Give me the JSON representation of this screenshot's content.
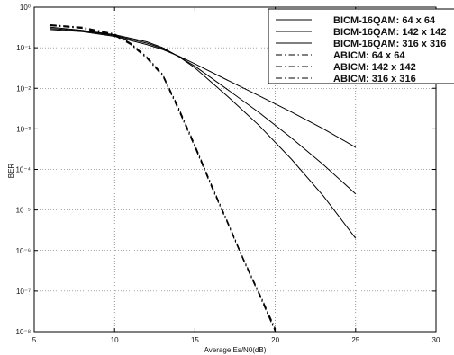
{
  "chart_data": {
    "type": "line",
    "xlabel": "Average Es/N0(dB)",
    "ylabel": "BER",
    "xlim": [
      5,
      30
    ],
    "ylim_log10": [
      -8,
      0
    ],
    "y_scale": "log",
    "grid": true,
    "legend_position": "top-right",
    "x_ticks": [
      "5",
      "10",
      "15",
      "20",
      "25",
      "30"
    ],
    "y_ticks": [
      "10⁰",
      "10⁻¹",
      "10⁻²",
      "10⁻³",
      "10⁻⁴",
      "10⁻⁵",
      "10⁻⁶",
      "10⁻⁷",
      "10⁻⁸"
    ],
    "series": [
      {
        "name": "BICM-16QAM: 64 x 64",
        "style": "solid",
        "color": "#000000",
        "x": [
          6,
          8,
          10,
          12,
          13,
          14,
          15,
          17,
          19,
          21,
          23,
          25
        ],
        "y": [
          0.28,
          0.25,
          0.19,
          0.12,
          0.09,
          0.062,
          0.04,
          0.016,
          0.0065,
          0.0026,
          0.001,
          0.00035
        ]
      },
      {
        "name": "BICM-16QAM: 142 x 142",
        "style": "solid",
        "color": "#000000",
        "x": [
          6,
          8,
          10,
          12,
          13,
          14,
          15,
          17,
          19,
          21,
          23,
          25
        ],
        "y": [
          0.3,
          0.26,
          0.2,
          0.13,
          0.095,
          0.06,
          0.035,
          0.0095,
          0.0025,
          0.0006,
          0.00013,
          2.5e-05
        ]
      },
      {
        "name": "BICM-16QAM: 316 x 316",
        "style": "solid",
        "color": "#000000",
        "x": [
          6,
          8,
          10,
          12,
          13,
          14,
          15,
          17,
          19,
          21,
          23,
          25
        ],
        "y": [
          0.32,
          0.27,
          0.21,
          0.14,
          0.1,
          0.06,
          0.032,
          0.0065,
          0.0012,
          0.00018,
          2.2e-05,
          2e-06
        ]
      },
      {
        "name": "ABICM: 64 x 64",
        "style": "dashdot",
        "color": "#000000",
        "x": [
          6,
          8,
          10,
          11,
          12,
          13,
          14,
          15,
          16,
          17,
          18,
          19,
          20
        ],
        "y": [
          0.35,
          0.3,
          0.2,
          0.12,
          0.055,
          0.02,
          0.0028,
          0.00035,
          4e-05,
          5e-06,
          6e-07,
          8e-08,
          1e-08
        ]
      },
      {
        "name": "ABICM: 142 x 142",
        "style": "dashdot",
        "color": "#000000",
        "x": [
          6,
          8,
          10,
          11,
          12,
          13,
          14,
          15,
          16,
          17,
          18,
          19,
          20
        ],
        "y": [
          0.36,
          0.31,
          0.21,
          0.125,
          0.057,
          0.021,
          0.003,
          0.00037,
          4.2e-05,
          5.2e-06,
          6.2e-07,
          8.5e-08,
          1.1e-08
        ]
      },
      {
        "name": "ABICM: 316 x 316",
        "style": "dashdot",
        "color": "#000000",
        "x": [
          6,
          8,
          10,
          11,
          12,
          13,
          14,
          15,
          16,
          17,
          18,
          19,
          20
        ],
        "y": [
          0.37,
          0.32,
          0.22,
          0.13,
          0.06,
          0.022,
          0.0032,
          0.0004,
          4.5e-05,
          5.5e-06,
          6.5e-07,
          9e-08,
          1.2e-08
        ]
      }
    ]
  }
}
